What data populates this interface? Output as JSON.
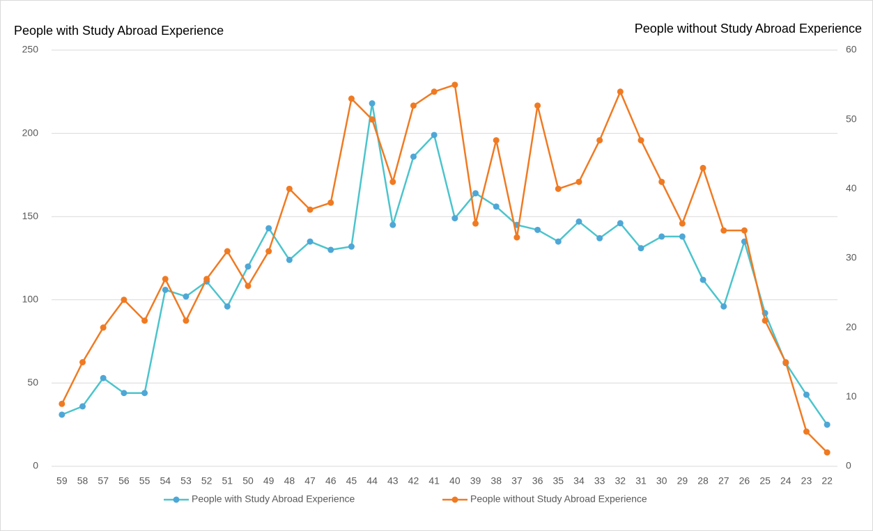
{
  "chart_data": {
    "type": "line",
    "y_label": "People with Study Abroad Experience",
    "y2_label": "People without Study Abroad Experience",
    "categories": [
      "59",
      "58",
      "57",
      "56",
      "55",
      "54",
      "53",
      "52",
      "51",
      "50",
      "49",
      "48",
      "47",
      "46",
      "45",
      "44",
      "43",
      "42",
      "41",
      "40",
      "39",
      "38",
      "37",
      "36",
      "35",
      "34",
      "33",
      "32",
      "31",
      "30",
      "29",
      "28",
      "27",
      "26",
      "25",
      "24",
      "23",
      "22"
    ],
    "series": [
      {
        "name": "People with Study Abroad Experience",
        "color": "#4bc4cc",
        "marker_color": "#4ea7d6",
        "values": [
          31,
          36,
          53,
          44,
          44,
          106,
          102,
          111,
          96,
          120,
          143,
          124,
          135,
          130,
          132,
          218,
          145,
          186,
          199,
          149,
          164,
          156,
          145,
          142,
          135,
          147,
          137,
          146,
          131,
          138,
          138,
          112,
          96,
          135,
          92,
          62,
          43,
          25
        ]
      },
      {
        "name": "People without Study Abroad Experience",
        "color": "#f07a22",
        "marker_color": "#f07a22",
        "axis": "y2",
        "values": [
          9,
          15,
          20,
          24,
          21,
          27,
          21,
          27,
          31,
          26,
          31,
          40,
          37,
          38,
          53,
          50,
          41,
          52,
          54,
          55,
          35,
          47,
          33,
          52,
          40,
          41,
          47,
          54,
          47,
          41,
          35,
          43,
          34,
          34,
          21,
          15,
          5,
          2
        ]
      }
    ],
    "ylim": [
      0,
      250
    ],
    "yticks": [
      0,
      50,
      100,
      150,
      200,
      250
    ],
    "y2lim": [
      0,
      60
    ],
    "y2ticks": [
      0,
      10,
      20,
      30,
      40,
      50,
      60
    ],
    "grid": true,
    "legend": "bottom"
  }
}
